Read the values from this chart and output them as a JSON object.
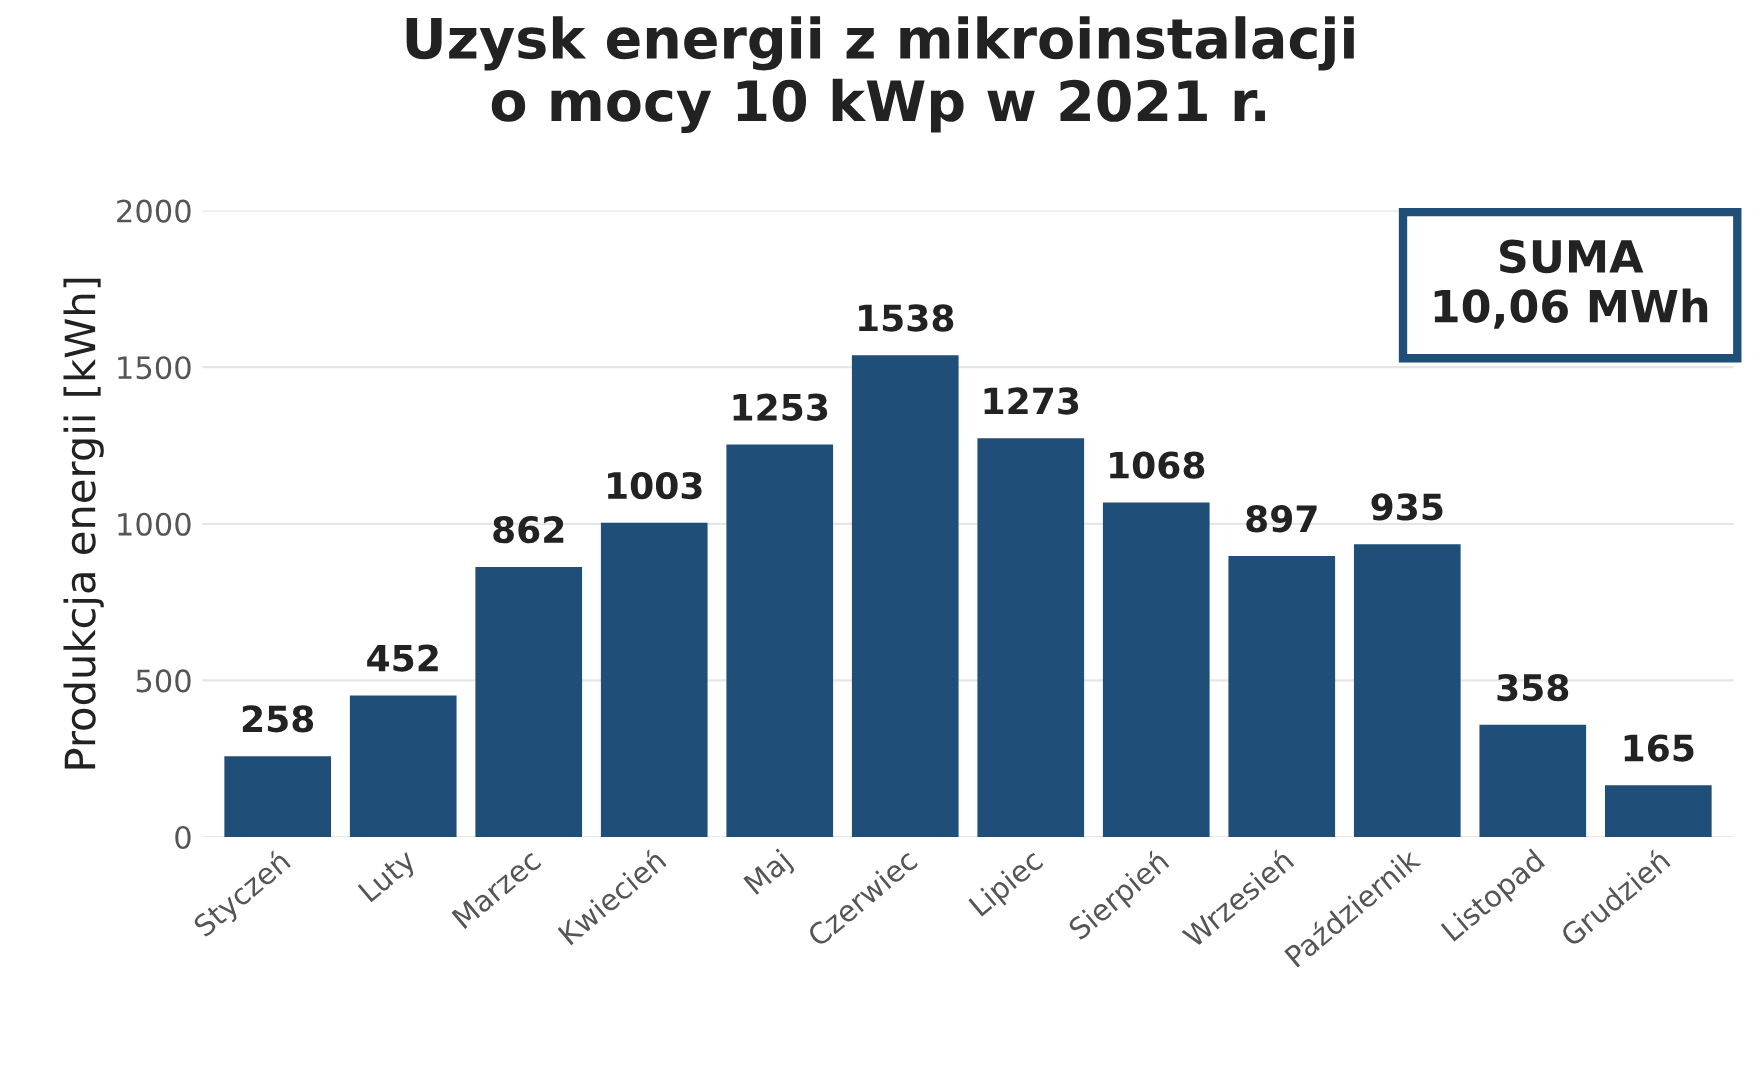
{
  "chart_data": {
    "type": "bar",
    "title": "Uzysk energii z mikroinstalacji\no mocy 10 kWp w 2021 r.",
    "ylabel": "Produkcja energii [kWh]",
    "categories": [
      "Styczeń",
      "Luty",
      "Marzec",
      "Kwiecień",
      "Maj",
      "Czerwiec",
      "Lipiec",
      "Sierpień",
      "Wrzesień",
      "Październik",
      "Listopad",
      "Grudzień"
    ],
    "values": [
      258,
      452,
      862,
      1003,
      1253,
      1538,
      1273,
      1068,
      897,
      935,
      358,
      165
    ],
    "color": "#1f4e79",
    "ylim": [
      0,
      2000
    ],
    "yticks": [
      0,
      500,
      1000,
      1500,
      2000
    ],
    "grid": "y",
    "data_labels": true,
    "annotations": [
      "SUMA\n10,06 MWh"
    ]
  }
}
